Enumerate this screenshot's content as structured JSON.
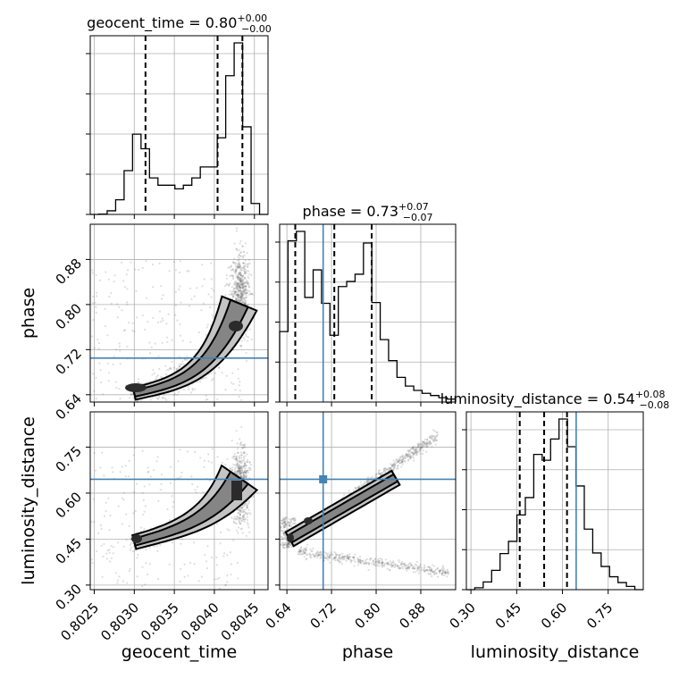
{
  "chart_data": {
    "type": "corner",
    "parameters": [
      {
        "name": "geocent_time",
        "label": "geocent_time",
        "range": [
          0.80245,
          0.80467
        ],
        "ticks": [
          0.8025,
          0.803,
          0.8035,
          0.804,
          0.8045
        ],
        "tick_labels": [
          "0.8025",
          "0.8030",
          "0.8035",
          "0.8040",
          "0.8045"
        ],
        "title_prefix": "geocent_time = ",
        "title_value": "0.80",
        "title_plus": "+0.00",
        "title_minus": "−0.00",
        "quantiles": [
          0.80314,
          0.80404,
          0.80435
        ],
        "truth": null
      },
      {
        "name": "phase",
        "label": "phase",
        "range": [
          0.627,
          0.9425
        ],
        "ticks": [
          0.64,
          0.72,
          0.8,
          0.88
        ],
        "tick_labels": [
          "0.64",
          "0.72",
          "0.80",
          "0.88"
        ],
        "title_prefix": "phase = ",
        "title_value": "0.73",
        "title_plus": "+0.07",
        "title_minus": "−0.07",
        "quantiles": [
          0.655,
          0.725,
          0.792
        ],
        "truth": 0.705
      },
      {
        "name": "luminosity_distance",
        "label": "luminosity_distance",
        "range": [
          0.285,
          0.865
        ],
        "ticks": [
          0.3,
          0.45,
          0.6,
          0.75
        ],
        "tick_labels": [
          "0.30",
          "0.45",
          "0.60",
          "0.75"
        ],
        "title_prefix": "luminosity_distance = ",
        "title_value": "0.54",
        "title_plus": "+0.08",
        "title_minus": "−0.08",
        "quantiles": [
          0.46,
          0.54,
          0.615
        ],
        "truth": 0.645
      }
    ],
    "histograms": [
      {
        "param": "geocent_time",
        "counts": [
          0,
          0.1,
          1,
          4,
          12,
          22,
          18,
          10,
          8,
          8,
          7,
          8,
          10,
          13,
          13,
          21,
          38,
          47,
          24,
          3,
          0
        ]
      },
      {
        "param": "phase",
        "counts": [
          9.7,
          22.2,
          23.5,
          14.4,
          18.2,
          13.6,
          9.2,
          15.9,
          16.6,
          17.6,
          21.9,
          13.7,
          8.6,
          5.7,
          3.4,
          2.2,
          1.6,
          1.2,
          0.9,
          0.6,
          0.4
        ]
      },
      {
        "param": "luminosity_distance",
        "counts": [
          0,
          0.3,
          1.2,
          3,
          5.6,
          7.5,
          11.6,
          14.3,
          21,
          20.1,
          23.4,
          26.5,
          22.2,
          16.1,
          9.4,
          5.7,
          3.6,
          2,
          1.1,
          0.5,
          0
        ]
      }
    ],
    "axis_labels": [
      "geocent_time",
      "phase",
      "luminosity_distance"
    ],
    "grid": true
  }
}
